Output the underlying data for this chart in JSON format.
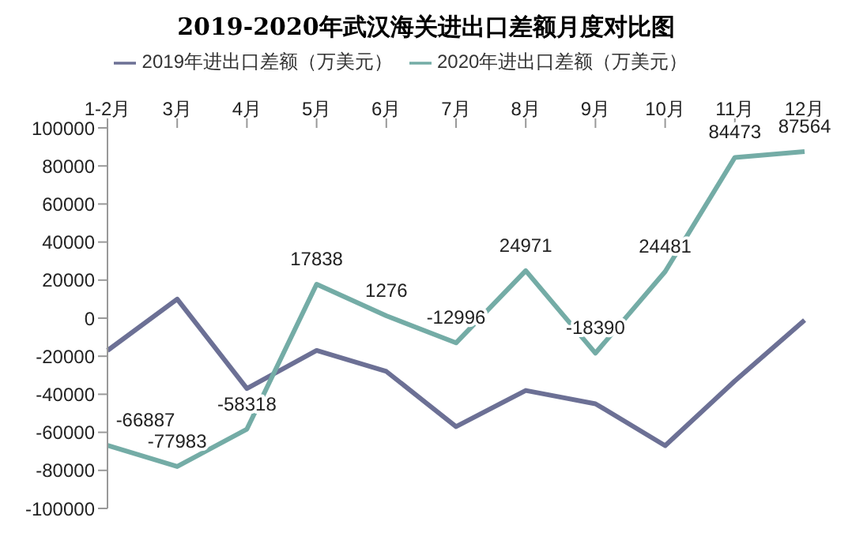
{
  "chart_data": {
    "type": "line",
    "title": "2019-2020年武汉海关进出口差额月度对比图",
    "categories": [
      "1-2月",
      "3月",
      "4月",
      "5月",
      "6月",
      "7月",
      "8月",
      "9月",
      "10月",
      "11月",
      "12月"
    ],
    "series": [
      {
        "name": "2019年进出口差额（万美元）",
        "color": "#6c7095",
        "values": [
          -17000,
          10000,
          -37000,
          -17000,
          -28000,
          -57000,
          -38000,
          -45000,
          -67000,
          -33000,
          -1000
        ]
      },
      {
        "name": "2020年进出口差额（万美元）",
        "color": "#74aca6",
        "values": [
          -66887,
          -77983,
          -58318,
          17838,
          1276,
          -12996,
          24971,
          -18390,
          24481,
          84473,
          87564
        ],
        "value_labels": [
          "-66887",
          "-77983",
          "-58318",
          "17838",
          "1276",
          "-12996",
          "24971",
          "-18390",
          "24481",
          "84473",
          "87564"
        ]
      }
    ],
    "ylim": [
      -100000,
      100000
    ],
    "yticks": [
      -100000,
      -80000,
      -60000,
      -40000,
      -20000,
      0,
      20000,
      40000,
      60000,
      80000,
      100000
    ],
    "grid": false,
    "legend": "top",
    "marker": "none",
    "line_style": "solid"
  }
}
